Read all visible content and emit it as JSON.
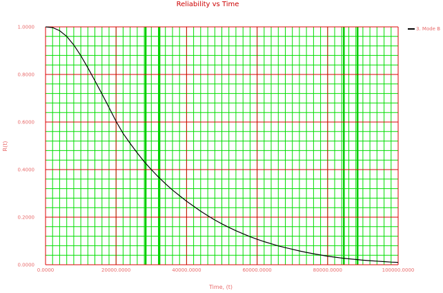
{
  "chart_data": {
    "type": "line",
    "title": "Reliability vs Time",
    "xlabel": "Time, (t)",
    "ylabel": "R(t)",
    "xlim": [
      0,
      100000
    ],
    "ylim": [
      0,
      1
    ],
    "x_ticks": [
      "0.0000",
      "20000.0000",
      "40000.0000",
      "60000.0000",
      "80000.0000",
      "100000.0000"
    ],
    "y_ticks": [
      "0.0000",
      "0.2000",
      "0.4000",
      "0.6000",
      "0.8000",
      "1.0000"
    ],
    "grid": true,
    "legend_position": "top-right",
    "series": [
      {
        "name": "3. Mode B",
        "color": "#000000",
        "x": [
          0,
          2000,
          4000,
          6000,
          8000,
          10000,
          12000,
          14000,
          16000,
          18000,
          20000,
          22000,
          24000,
          26000,
          28000,
          30000,
          32000,
          34000,
          36000,
          38000,
          40000,
          42000,
          44000,
          46000,
          48000,
          50000,
          52000,
          54000,
          56000,
          58000,
          60000,
          62000,
          64000,
          66000,
          68000,
          70000,
          72000,
          74000,
          76000,
          78000,
          80000,
          82000,
          84000,
          86000,
          88000,
          90000,
          92000,
          94000,
          96000,
          98000,
          100000
        ],
        "values": [
          1.0,
          0.997,
          0.984,
          0.96,
          0.924,
          0.879,
          0.828,
          0.774,
          0.718,
          0.661,
          0.603,
          0.552,
          0.51,
          0.47,
          0.433,
          0.4,
          0.369,
          0.341,
          0.314,
          0.29,
          0.267,
          0.246,
          0.225,
          0.206,
          0.188,
          0.172,
          0.157,
          0.143,
          0.13,
          0.118,
          0.107,
          0.097,
          0.088,
          0.079,
          0.072,
          0.065,
          0.058,
          0.052,
          0.046,
          0.041,
          0.036,
          0.032,
          0.028,
          0.025,
          0.022,
          0.019,
          0.017,
          0.015,
          0.013,
          0.011,
          0.01
        ]
      }
    ]
  },
  "colors": {
    "minor_grid": "#00dd00",
    "major_grid": "#dd0000",
    "highlight_grid": "#00cc00",
    "axis": "#dd0000",
    "title": "#cc0000",
    "labels": "#e86a6a"
  }
}
